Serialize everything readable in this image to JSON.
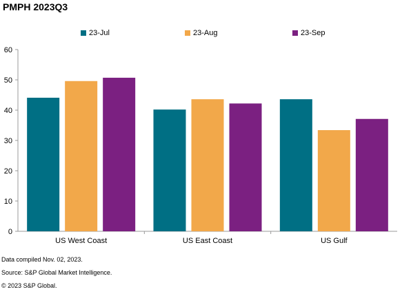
{
  "title": "PMPH 2023Q3",
  "chart_data": {
    "type": "bar",
    "categories": [
      "US West Coast",
      "US East Coast",
      "US Gulf"
    ],
    "series": [
      {
        "name": "23-Jul",
        "color": "#006F84",
        "values": [
          44.1,
          40.2,
          43.6
        ]
      },
      {
        "name": "23-Aug",
        "color": "#F2A84A",
        "values": [
          49.6,
          43.6,
          33.4
        ]
      },
      {
        "name": "23-Sep",
        "color": "#7B2081",
        "values": [
          50.7,
          42.2,
          37.1
        ]
      }
    ],
    "ylim": [
      0,
      60
    ],
    "yticks": [
      "0",
      "10",
      "20",
      "30",
      "40",
      "50",
      "60"
    ],
    "grid": false,
    "legend_position": "top"
  },
  "footnotes": [
    "Data compiled Nov. 02, 2023.",
    "Source: S&P Global Market Intelligence.",
    "© 2023 S&P Global."
  ]
}
